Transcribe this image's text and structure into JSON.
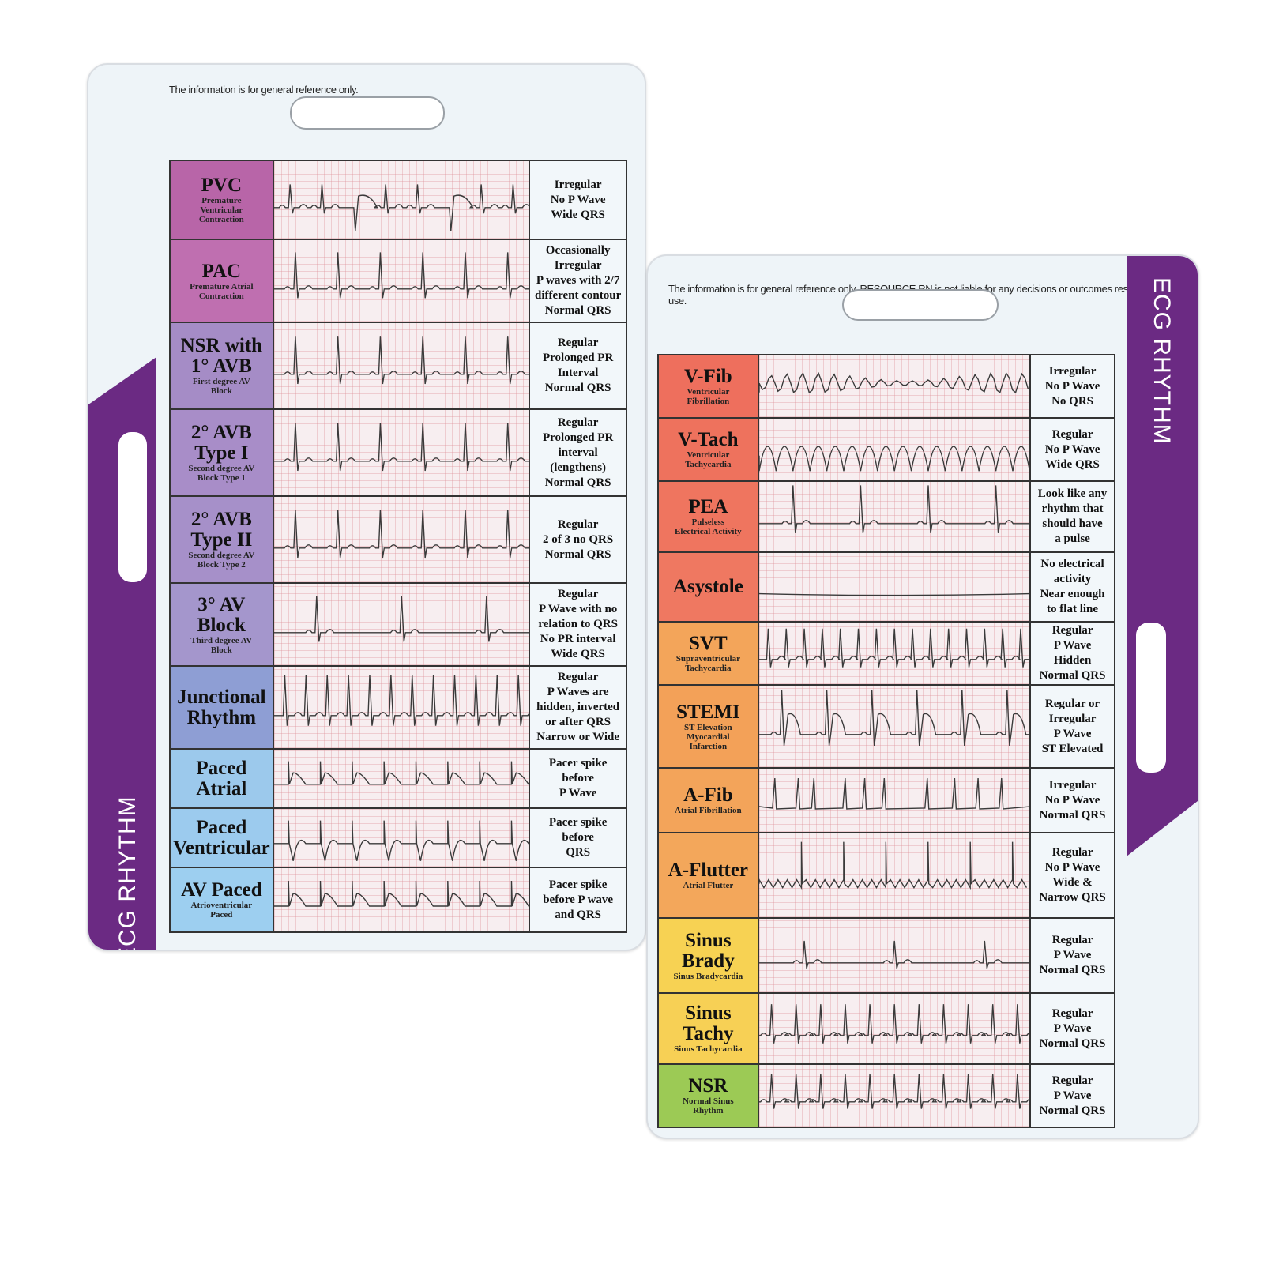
{
  "left_card": {
    "disclaimer": "The information\nis for general\nreference only.",
    "band_label": "ECG RHYTHM",
    "band_color": "#6b2a83",
    "rows": [
      {
        "title": "PVC",
        "subtitle": "Premature\nVentricular\nContraction",
        "desc": "Irregular\nNo P Wave\nWide QRS",
        "color": "#b865a8"
      },
      {
        "title": "PAC",
        "subtitle": "Premature Atrial\nContraction",
        "desc": "Occasionally\nIrregular\nP waves with 2/7\ndifferent contour\nNormal QRS",
        "color": "#bf6fb0"
      },
      {
        "title": "NSR with\n1° AVB",
        "subtitle": "First degree AV\nBlock",
        "desc": "Regular\nProlonged PR\nInterval\nNormal QRS",
        "color": "#a58cc6"
      },
      {
        "title": "2° AVB\nType I",
        "subtitle": "Second degree AV\nBlock Type 1",
        "desc": "Regular\nProlonged PR\ninterval\n(lengthens)\nNormal QRS",
        "color": "#a88dc8"
      },
      {
        "title": "2° AVB\nType II",
        "subtitle": "Second degree AV\nBlock Type 2",
        "desc": "Regular\n2 of 3 no QRS\nNormal QRS",
        "color": "#a690c9"
      },
      {
        "title": "3° AV\nBlock",
        "subtitle": "Third degree AV\nBlock",
        "desc": "Regular\nP Wave with no\nrelation to QRS\nNo PR interval\nWide QRS",
        "color": "#a496cc"
      },
      {
        "title": "Junctional\nRhythm",
        "subtitle": "",
        "desc": "Regular\nP Waves are\nhidden, inverted\nor after QRS\nNarrow or Wide",
        "color": "#8e9ed4"
      },
      {
        "title": "Paced\nAtrial",
        "subtitle": "",
        "desc": "Pacer spike\nbefore\nP Wave",
        "color": "#9cc9ec"
      },
      {
        "title": "Paced\nVentricular",
        "subtitle": "",
        "desc": "Pacer spike\nbefore\nQRS",
        "color": "#9ccbee"
      },
      {
        "title": "AV Paced",
        "subtitle": "Atrioventricular\nPaced",
        "desc": "Pacer spike\nbefore P wave\nand QRS",
        "color": "#9dcff0"
      }
    ]
  },
  "right_card": {
    "disclaimer": "The information is for general\nreference only. RESOURCE RN\nis not liable for any decisions or\noutcomes resulting from its use.",
    "band_label": "ECG RHYTHM",
    "band_color": "#6b2a83",
    "rows": [
      {
        "title": "V-Fib",
        "subtitle": "Ventricular\nFibrillation",
        "desc": "Irregular\nNo P Wave\nNo QRS",
        "color": "#ee6f5d"
      },
      {
        "title": "V-Tach",
        "subtitle": "Ventricular\nTachycardia",
        "desc": "Regular\nNo P Wave\nWide QRS",
        "color": "#ee725d"
      },
      {
        "title": "PEA",
        "subtitle": "Pulseless\nElectrical Activity",
        "desc": "Look like any\nrhythm that\nshould have\na pulse",
        "color": "#ef755f"
      },
      {
        "title": "Asystole",
        "subtitle": "",
        "desc": "No electrical\nactivity\nNear enough\nto flat line",
        "color": "#ef7861"
      },
      {
        "title": "SVT",
        "subtitle": "Supraventricular\nTachycardia",
        "desc": "Regular\nP Wave\nHidden\nNormal QRS",
        "color": "#f3a55a"
      },
      {
        "title": "STEMI",
        "subtitle": "ST Elevation\nMyocardial\nInfarction",
        "desc": "Regular or\nIrregular\nP Wave\nST Elevated",
        "color": "#f3a158"
      },
      {
        "title": "A-Fib",
        "subtitle": "Atrial Fibrillation",
        "desc": "Irregular\nNo P Wave\nNormal QRS",
        "color": "#f3a45a"
      },
      {
        "title": "A-Flutter",
        "subtitle": "Atrial Flutter",
        "desc": "Regular\nNo P Wave\nWide &\nNarrow QRS",
        "color": "#f3a75b"
      },
      {
        "title": "Sinus\nBrady",
        "subtitle": "Sinus Bradycardia",
        "desc": "Regular\nP Wave\nNormal QRS",
        "color": "#f7d253"
      },
      {
        "title": "Sinus\nTachy",
        "subtitle": "Sinus Tachycardia",
        "desc": "Regular\nP Wave\nNormal QRS",
        "color": "#f7d055"
      },
      {
        "title": "NSR",
        "subtitle": "Normal Sinus\nRhythm",
        "desc": "Regular\nP Wave\nNormal QRS",
        "color": "#9cca55"
      }
    ]
  }
}
